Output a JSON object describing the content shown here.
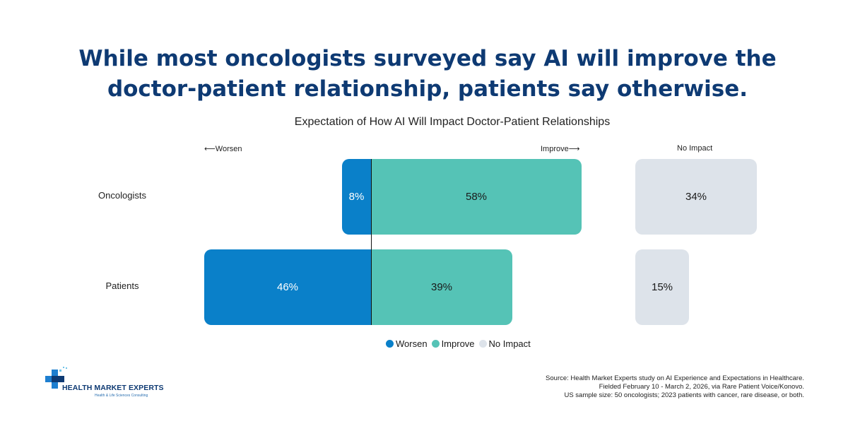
{
  "headline": {
    "line1": "While most oncologists surveyed say AI will improve the",
    "line2": "doctor-patient relationship, patients say otherwise."
  },
  "chart_data": {
    "type": "bar",
    "orientation": "horizontal-diverging",
    "title": "Expectation of How AI Will Impact Doctor-Patient Relationships",
    "direction_labels": {
      "left": "⟵Worsen",
      "right": "Improve⟶",
      "no_impact": "No Impact"
    },
    "categories": [
      "Oncologists",
      "Patients"
    ],
    "series": [
      {
        "name": "Worsen",
        "values": [
          8,
          46
        ],
        "labels": [
          "8%",
          "46%"
        ],
        "color": "#0a80c9"
      },
      {
        "name": "Improve",
        "values": [
          58,
          39
        ],
        "labels": [
          "58%",
          "39%"
        ],
        "color": "#55c3b6"
      },
      {
        "name": "No Impact",
        "values": [
          34,
          15
        ],
        "labels": [
          "34%",
          "15%"
        ],
        "color": "#dde3ea"
      }
    ],
    "legend": [
      "Worsen",
      "Improve",
      "No Impact"
    ],
    "legend_position": "bottom-center",
    "grid": false
  },
  "logo": {
    "name": "HEALTH MARKET EXPERTS",
    "tagline": "Health & Life Sciences Consulting"
  },
  "source": {
    "line1": "Source: Health Market Experts study on AI Experience and Expectations in Healthcare.",
    "line2": "Fielded February 10 - March 2, 2026, via Rare Patient Voice/Konovo.",
    "line3": "US sample size: 50 oncologists; 2023 patients with cancer, rare disease, or both."
  }
}
